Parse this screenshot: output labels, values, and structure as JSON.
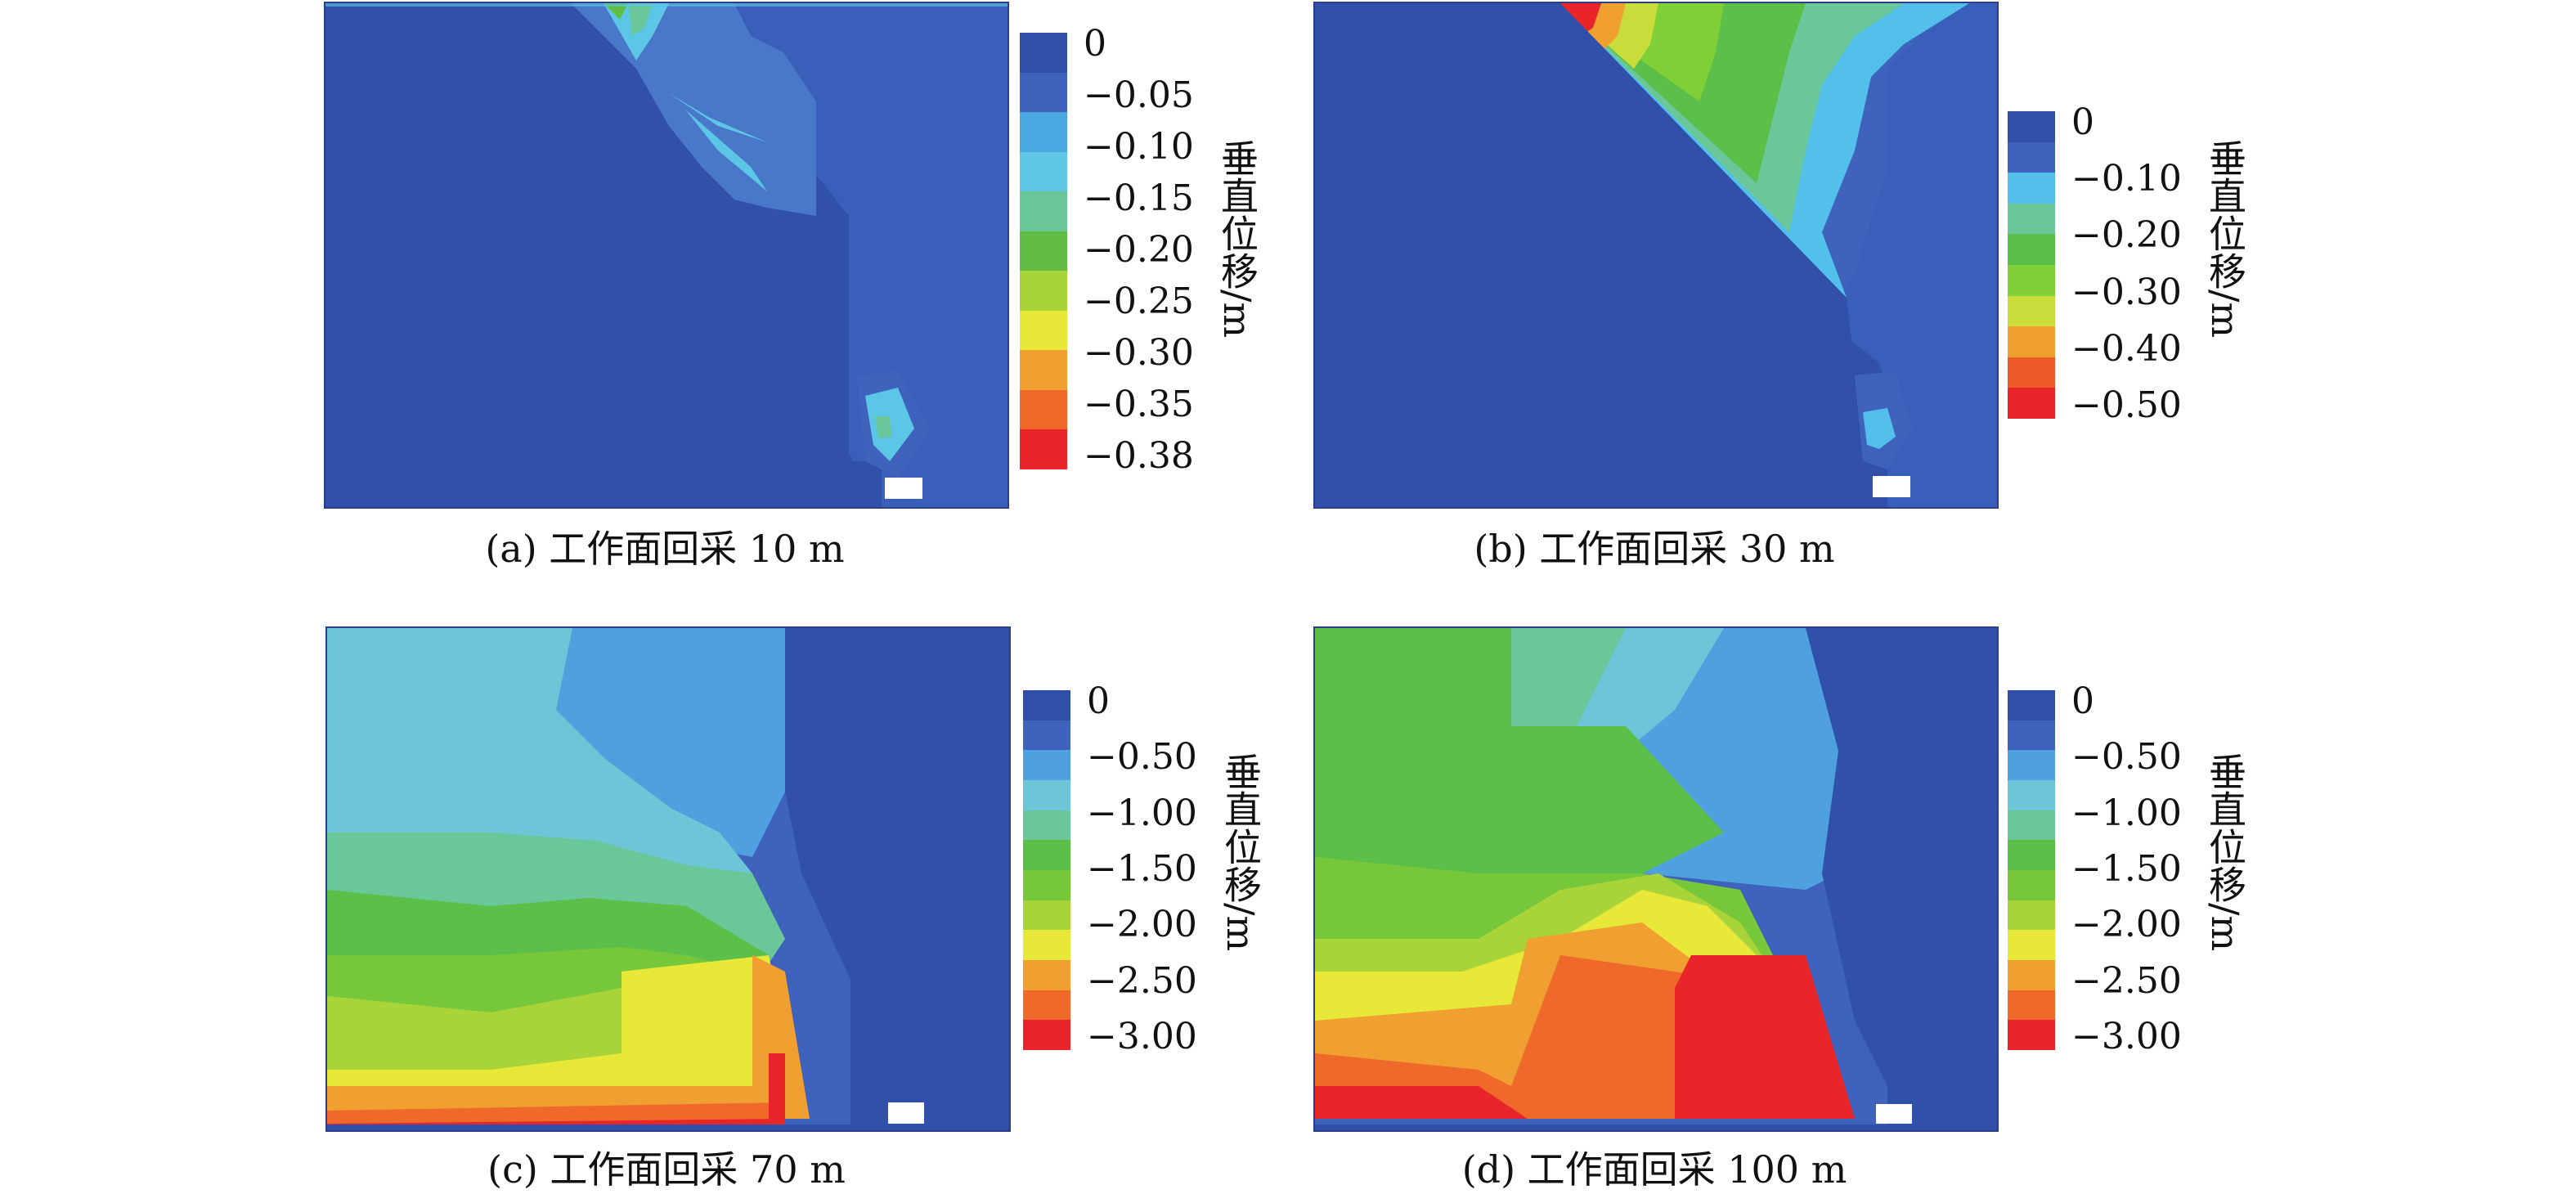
{
  "figure": {
    "colorbar_label": "垂直位移/m",
    "panels": [
      {
        "id": "a",
        "caption": "(a) 工作面回采 10 m",
        "legend_ticks": [
          "0",
          "−0.05",
          "−0.10",
          "−0.15",
          "−0.20",
          "−0.25",
          "−0.30",
          "−0.35",
          "−0.38"
        ],
        "legend_colors": [
          "#2f4fa8",
          "#3f63bd",
          "#4aa8e0",
          "#5fc6e6",
          "#69c79a",
          "#62bd45",
          "#a8d43a",
          "#e8e838",
          "#f0a030",
          "#ef6a2a",
          "#e8262a"
        ]
      },
      {
        "id": "b",
        "caption": "(b) 工作面回采 30 m",
        "legend_ticks": [
          "0",
          "−0.10",
          "−0.20",
          "−0.30",
          "−0.40",
          "−0.50"
        ],
        "legend_colors": [
          "#2f4fa8",
          "#3f63bd",
          "#52c0ea",
          "#69c79a",
          "#5cbf4a",
          "#7fcf36",
          "#c8dc3a",
          "#f0a030",
          "#ee5a2a",
          "#e8262a"
        ]
      },
      {
        "id": "c",
        "caption": "(c) 工作面回采 70 m",
        "legend_ticks": [
          "0",
          "−0.50",
          "−1.00",
          "−1.50",
          "−2.00",
          "−2.50",
          "−3.00"
        ],
        "legend_colors": [
          "#2f4fa8",
          "#3f63bd",
          "#4fa0de",
          "#6cc6d8",
          "#69c79a",
          "#5cbf4a",
          "#76c83a",
          "#a8d43a",
          "#e8e838",
          "#f0a030",
          "#ef6a2a",
          "#e8262a"
        ]
      },
      {
        "id": "d",
        "caption": "(d) 工作面回采 100 m",
        "legend_ticks": [
          "0",
          "−0.50",
          "−1.00",
          "−1.50",
          "−2.00",
          "−2.50",
          "−3.00"
        ],
        "legend_colors": [
          "#2f4fa8",
          "#3f63bd",
          "#4fa0de",
          "#6cc6d8",
          "#69c79a",
          "#5cbf4a",
          "#76c83a",
          "#a8d43a",
          "#e8e838",
          "#f0a030",
          "#ef6a2a",
          "#e8262a"
        ]
      }
    ]
  }
}
